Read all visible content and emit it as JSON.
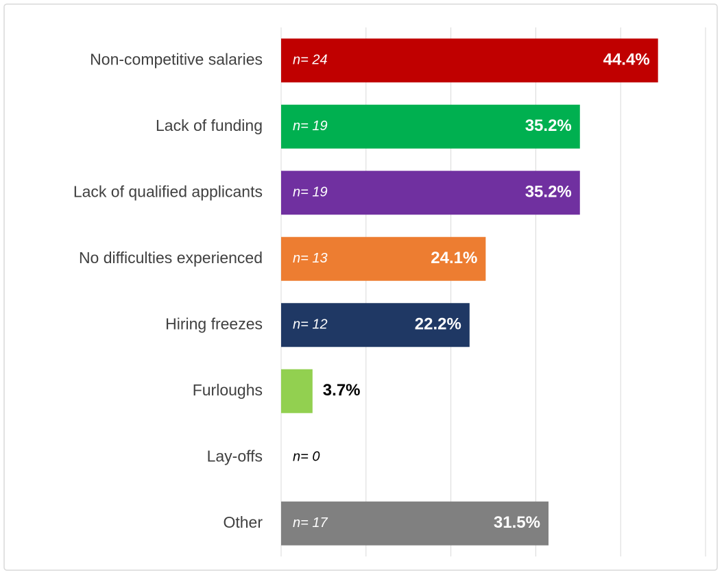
{
  "chart_data": {
    "type": "bar",
    "orientation": "horizontal",
    "categories": [
      "Non-competitive salaries",
      "Lack of funding",
      "Lack of qualified applicants",
      "No difficulties experienced",
      "Hiring freezes",
      "Furloughs",
      "Lay-offs",
      "Other"
    ],
    "values": [
      44.4,
      35.2,
      35.2,
      24.1,
      22.2,
      3.7,
      0,
      31.5
    ],
    "value_labels": [
      "44.4%",
      "35.2%",
      "35.2%",
      "24.1%",
      "22.2%",
      "3.7%",
      null,
      "31.5%"
    ],
    "n_labels": [
      "n= 24",
      "n= 19",
      "n= 19",
      "n= 13",
      "n= 12",
      null,
      "n= 0",
      "n= 17"
    ],
    "colors": [
      "#c00000",
      "#00b050",
      "#7030a0",
      "#ed7d31",
      "#1f3864",
      "#92d050",
      "#92d050",
      "#808080"
    ],
    "xlim": [
      0,
      50
    ],
    "xticks": [
      0,
      10,
      20,
      30,
      40,
      50
    ],
    "grid": true
  }
}
